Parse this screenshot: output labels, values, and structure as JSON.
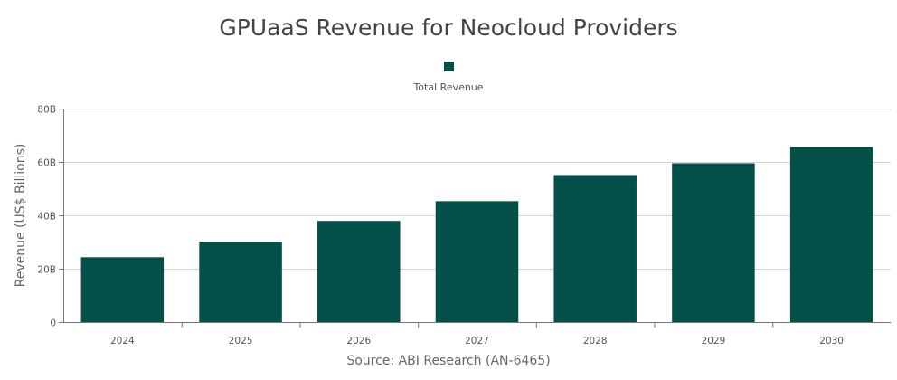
{
  "chart_data": {
    "type": "bar",
    "title": "GPUaaS Revenue for Neocloud Providers",
    "xlabel": "Source: ABI Research (AN-6465)",
    "ylabel": "Revenue (US$ Billions)",
    "categories": [
      "2024",
      "2025",
      "2026",
      "2027",
      "2028",
      "2029",
      "2030"
    ],
    "series": [
      {
        "name": "Total Revenue",
        "values": [
          24.3,
          30.1,
          37.9,
          45.3,
          55.1,
          59.5,
          65.6
        ],
        "color": "#034f4a"
      }
    ],
    "ylim": [
      0,
      80
    ],
    "yticks": [
      0,
      20,
      40,
      60,
      80
    ],
    "ytick_labels": [
      "0",
      "20B",
      "40B",
      "60B",
      "80B"
    ],
    "grid": true,
    "legend": "top-center"
  }
}
